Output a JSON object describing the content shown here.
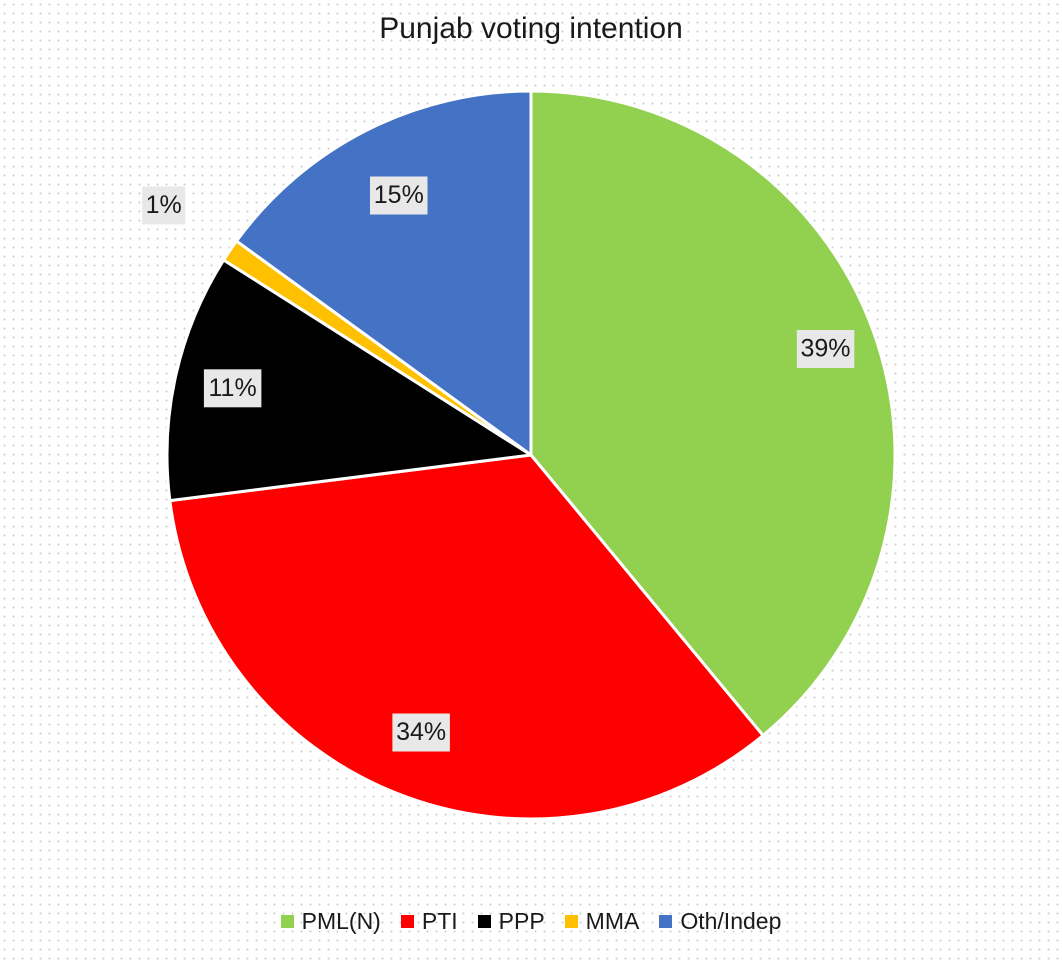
{
  "chart_data": {
    "type": "pie",
    "title": "Punjab voting intention",
    "categories": [
      "PML(N)",
      "PTI",
      "PPP",
      "MMA",
      "Oth/Indep"
    ],
    "values": [
      39,
      34,
      11,
      1,
      15
    ],
    "labels": [
      "39%",
      "34%",
      "11%",
      "1%",
      "15%"
    ],
    "colors": [
      "#92d050",
      "#ff0000",
      "#000000",
      "#ffc000",
      "#4472c4"
    ],
    "start_angle_deg": 0,
    "direction": "clockwise",
    "legend_position": "bottom",
    "grid": false
  }
}
